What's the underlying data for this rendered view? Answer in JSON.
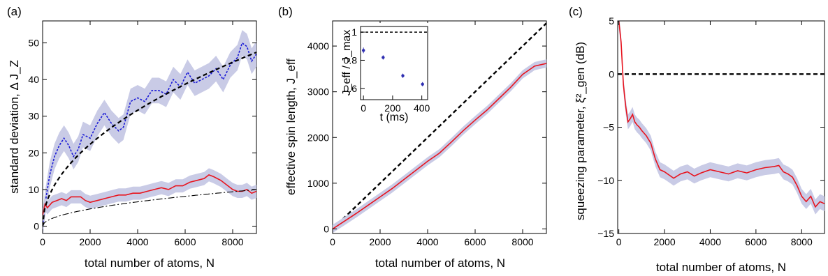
{
  "chart_data": [
    {
      "panel": "(a)",
      "type": "line",
      "xlabel": "total number of atoms, N",
      "ylabel": "standard deviation, Δ J_Z",
      "xlim": [
        0,
        9000
      ],
      "ylim": [
        -2,
        56
      ],
      "xticks": [
        0,
        2000,
        4000,
        6000,
        8000
      ],
      "yticks": [
        0,
        10,
        20,
        30,
        40,
        50
      ],
      "series": [
        {
          "style": "blue-dotted-with-band",
          "color": "#1a1ad6",
          "band_color": "#c9cbe6",
          "x": [
            0,
            100,
            200,
            300,
            500,
            700,
            900,
            1100,
            1300,
            1500,
            1700,
            2000,
            2300,
            2600,
            2900,
            3200,
            3400,
            3700,
            4000,
            4300,
            4600,
            4900,
            5200,
            5500,
            5800,
            6100,
            6400,
            6700,
            7000,
            7300,
            7600,
            7900,
            8200,
            8400,
            8600,
            8800,
            9000
          ],
          "values": [
            0,
            6,
            10,
            14,
            19,
            22,
            24,
            22,
            19,
            21,
            25,
            24,
            28,
            31,
            28,
            26,
            27,
            34,
            35,
            34,
            37,
            37,
            36,
            40,
            38,
            42,
            39,
            40,
            41,
            43,
            40,
            44,
            46,
            50,
            49,
            45,
            47
          ],
          "band": 3.5
        },
        {
          "style": "red-solid-with-band",
          "color": "#e8141e",
          "band_color": "#c9cbe6",
          "x": [
            0,
            100,
            200,
            400,
            600,
            800,
            1000,
            1200,
            1400,
            1600,
            1800,
            2000,
            2300,
            2600,
            2900,
            3200,
            3500,
            3800,
            4100,
            4400,
            4700,
            5000,
            5300,
            5600,
            5900,
            6200,
            6500,
            6800,
            7000,
            7200,
            7500,
            7800,
            8000,
            8200,
            8400,
            8600,
            8800,
            9000
          ],
          "values": [
            3,
            6,
            5,
            6.5,
            7,
            7.5,
            7,
            8,
            8,
            8,
            7,
            6.5,
            7,
            7.5,
            8,
            8.5,
            8.5,
            9,
            9,
            9.5,
            10,
            10.5,
            10,
            11,
            11,
            12,
            12.5,
            13,
            14,
            13.5,
            12.5,
            11,
            10,
            9.5,
            9.5,
            10,
            9,
            9.5
          ],
          "band": 1.8
        },
        {
          "style": "black-dashed",
          "color": "#000000",
          "fn": "sqrt",
          "coef": 0.5
        },
        {
          "style": "black-dashdot",
          "color": "#000000",
          "fn": "sqrt",
          "coef": 0.105
        }
      ]
    },
    {
      "panel": "(b)",
      "type": "line",
      "xlabel": "total number of atoms, N",
      "ylabel": "effective spin length, J_eff",
      "xlim": [
        0,
        9000
      ],
      "ylim": [
        -100,
        4550
      ],
      "xticks": [
        0,
        2000,
        4000,
        6000,
        8000
      ],
      "yticks": [
        0,
        1000,
        2000,
        3000,
        4000
      ],
      "series": [
        {
          "style": "black-dashed",
          "color": "#000000",
          "x": [
            0,
            9000
          ],
          "values": [
            0,
            4500
          ]
        },
        {
          "style": "red-solid-with-band",
          "color": "#e8141e",
          "band_color": "#c9cbe6",
          "x": [
            0,
            500,
            1000,
            1500,
            2000,
            2500,
            3000,
            3500,
            4000,
            4500,
            5000,
            5500,
            6000,
            6500,
            7000,
            7500,
            8000,
            8500,
            9000
          ],
          "values": [
            0,
            170,
            340,
            520,
            700,
            880,
            1080,
            1280,
            1480,
            1660,
            1900,
            2150,
            2380,
            2600,
            2850,
            3100,
            3380,
            3560,
            3620
          ],
          "band": 90
        }
      ],
      "inset": {
        "xlabel": "t (ms)",
        "ylabel": "J_eff / J_max",
        "xlim": [
          -20,
          440
        ],
        "ylim": [
          0.52,
          1.04
        ],
        "xticks": [
          0,
          200,
          400
        ],
        "yticks": [
          0.6,
          0.8,
          1
        ],
        "ytick_labels": [
          "0.6",
          "0.8",
          "1"
        ],
        "dashed_level": 1,
        "points": [
          {
            "t": 0,
            "v": 0.87,
            "err": 0.02
          },
          {
            "t": 135,
            "v": 0.82,
            "err": 0.015
          },
          {
            "t": 270,
            "v": 0.69,
            "err": 0.015
          },
          {
            "t": 405,
            "v": 0.63,
            "err": 0.015
          }
        ],
        "point_color": "#2d2db0"
      }
    },
    {
      "panel": "(c)",
      "type": "line",
      "xlabel": "total number of atoms, N",
      "ylabel": "squeezing parameter, ξ²_gen (dB)",
      "xlim": [
        -50,
        9000
      ],
      "ylim": [
        -15,
        5
      ],
      "xticks": [
        0,
        2000,
        4000,
        6000,
        8000
      ],
      "yticks": [
        -15,
        -10,
        -5,
        0,
        5
      ],
      "ytick_labels": [
        "−15",
        "−10",
        "−5",
        "0",
        "5"
      ],
      "series": [
        {
          "style": "black-dashed",
          "color": "#000000",
          "x": [
            -50,
            9000
          ],
          "values": [
            0,
            0
          ]
        },
        {
          "style": "red-solid-with-band",
          "color": "#e8141e",
          "band_color": "#c9cbe6",
          "x": [
            0,
            50,
            100,
            150,
            200,
            300,
            400,
            500,
            600,
            700,
            800,
            900,
            1000,
            1200,
            1400,
            1600,
            1800,
            2000,
            2200,
            2400,
            2700,
            3000,
            3300,
            3600,
            4000,
            4400,
            4800,
            5200,
            5600,
            6000,
            6400,
            6800,
            7000,
            7200,
            7400,
            7600,
            7800,
            8000,
            8200,
            8400,
            8600,
            8800,
            9000
          ],
          "values": [
            5,
            4,
            3,
            1,
            -1,
            -3,
            -4.5,
            -4.2,
            -3.8,
            -4.5,
            -4.8,
            -5,
            -5.3,
            -5.8,
            -6.5,
            -8,
            -9,
            -9.2,
            -9.5,
            -9.8,
            -9.4,
            -9.2,
            -9.6,
            -9.3,
            -9.0,
            -9.2,
            -9.4,
            -9.1,
            -9.3,
            -9.0,
            -8.8,
            -8.7,
            -8.6,
            -9.2,
            -9.4,
            -9.7,
            -10.5,
            -11.5,
            -12,
            -11.5,
            -12.5,
            -12,
            -12.2
          ],
          "band": 0.7
        }
      ]
    }
  ]
}
